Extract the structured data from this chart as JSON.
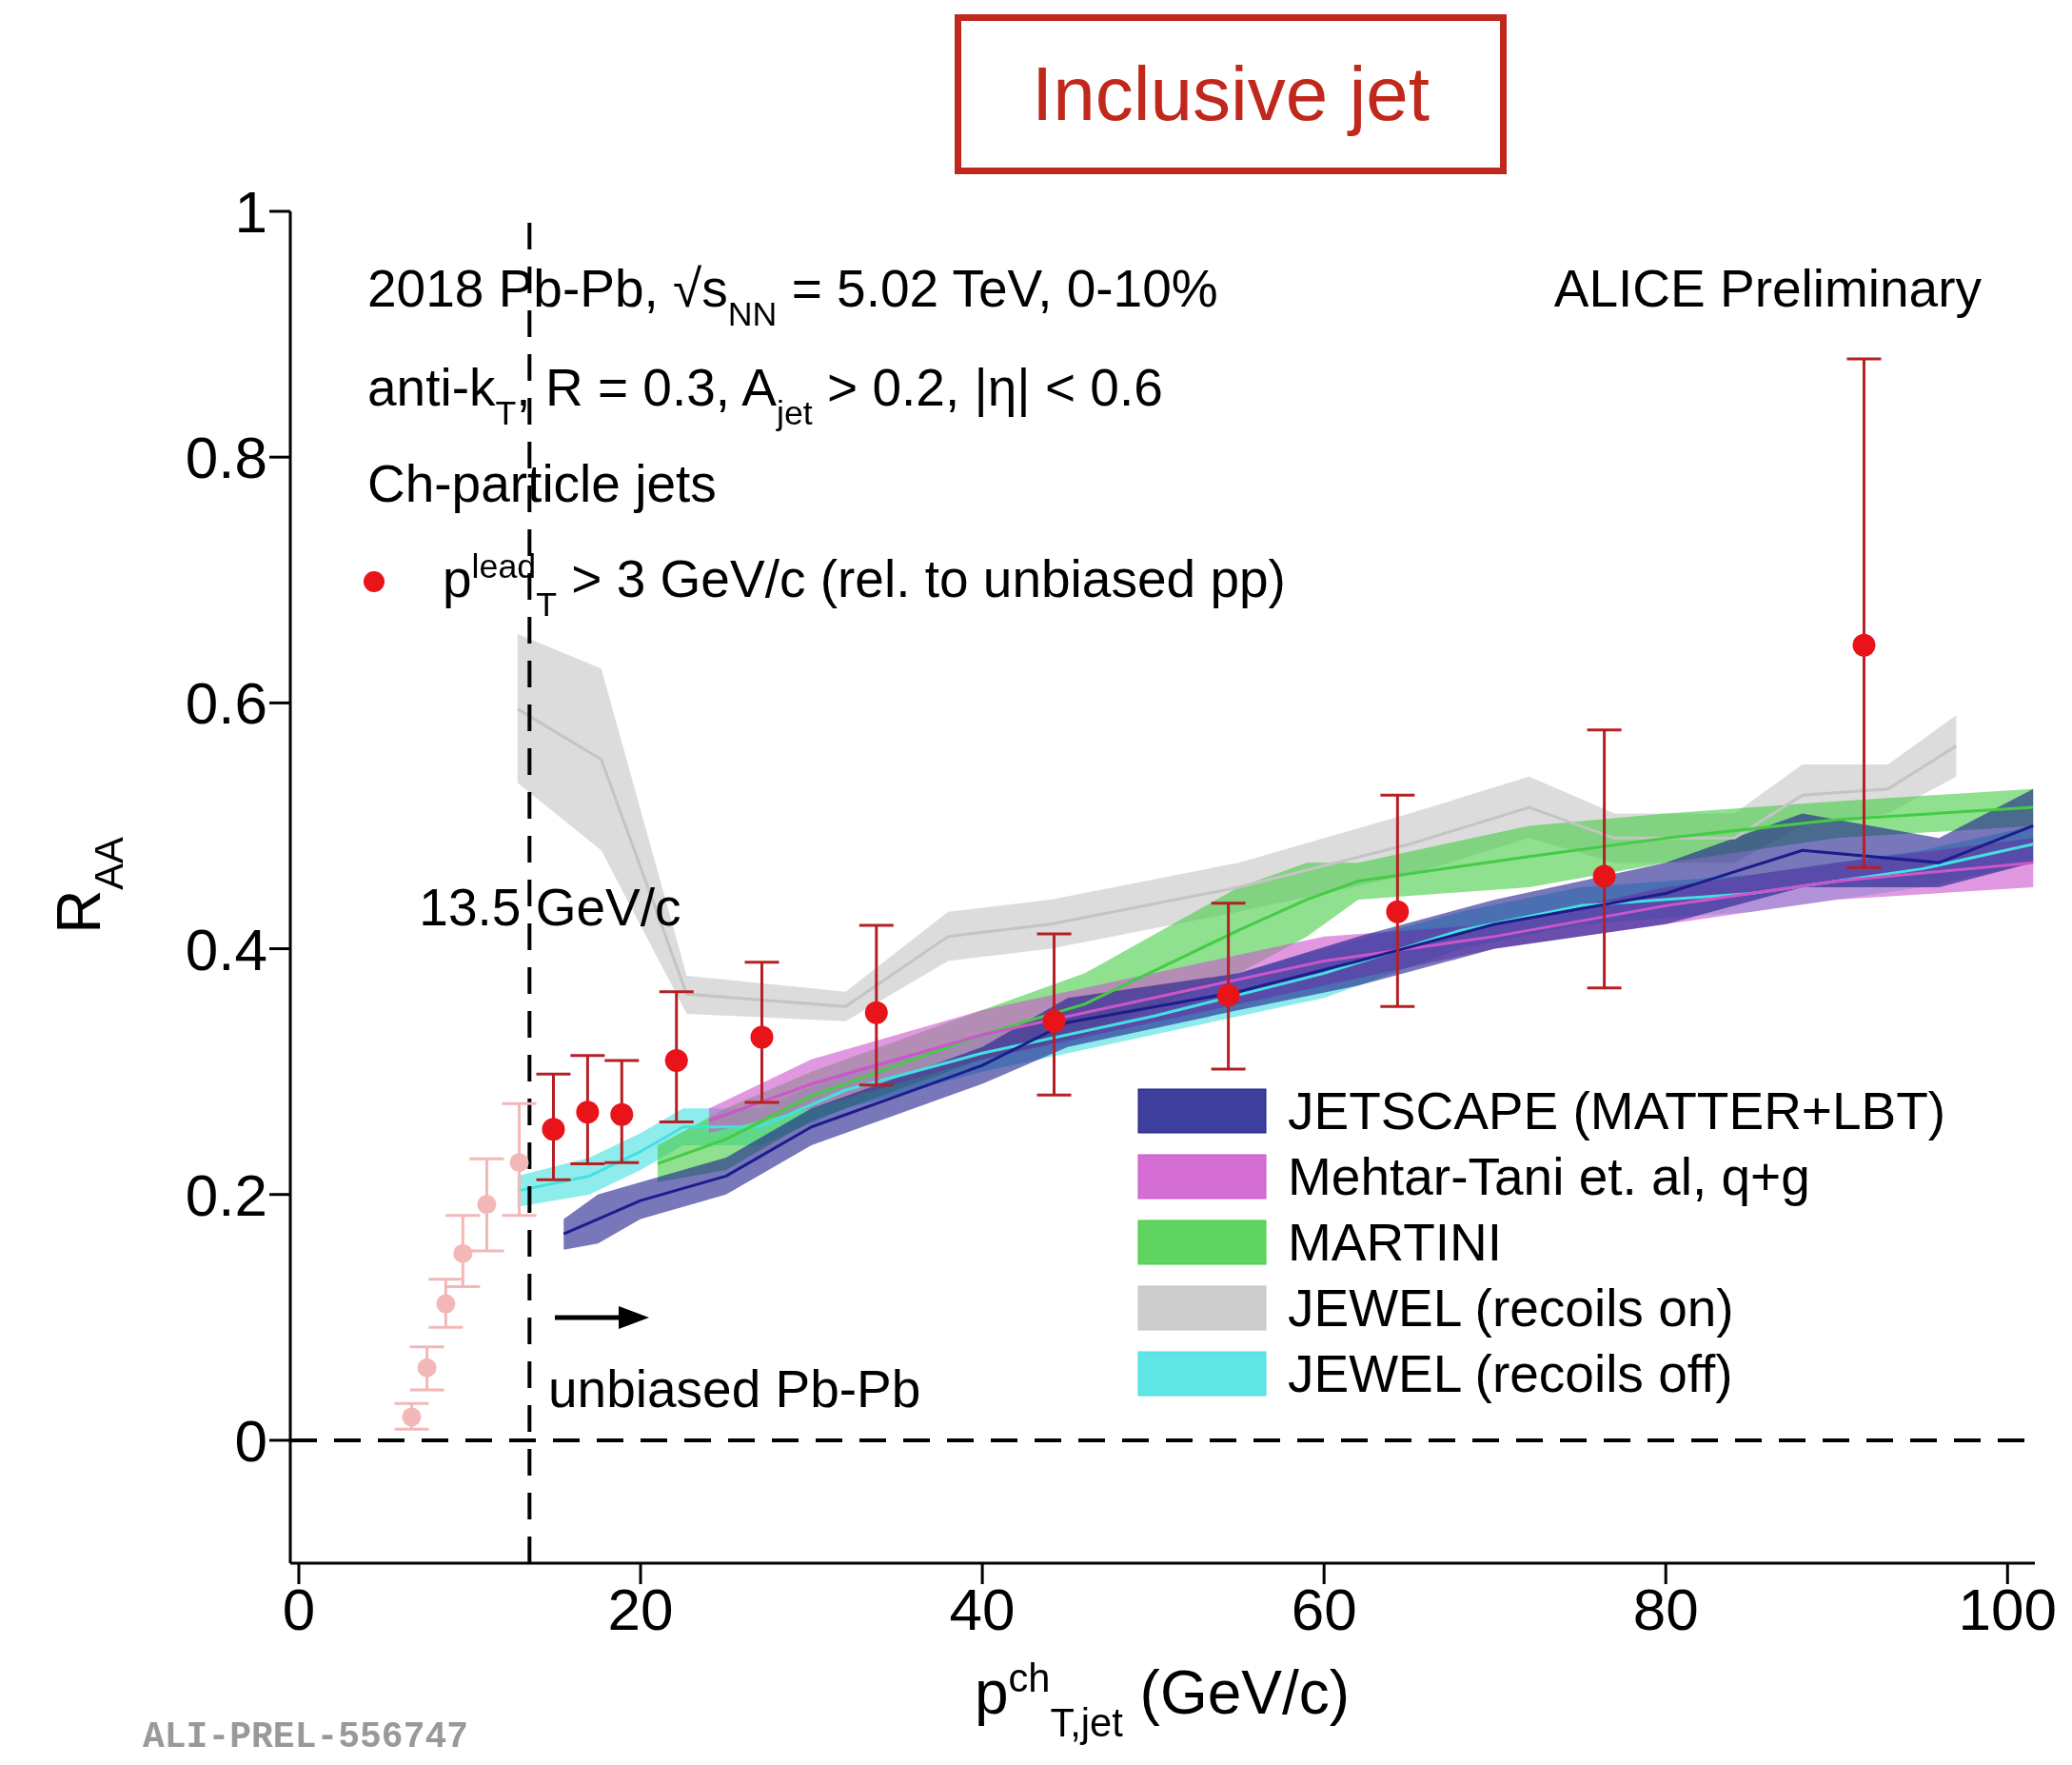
{
  "chart_data": {
    "type": "scatter",
    "title": "Inclusive jet",
    "xlabel": "p$^{ch}$$_{T,jet}$ (GeV/c)",
    "ylabel": "R$_{AA}$",
    "xlim": [
      -0.5,
      101.6
    ],
    "xticks": [
      0,
      20,
      40,
      60,
      80,
      100
    ],
    "ylim": [
      -0.1,
      1
    ],
    "yticks": [
      0,
      0.2,
      0.4,
      0.6,
      0.8,
      1
    ],
    "grid": false,
    "legend": "bottom right",
    "marker": "circle",
    "annotations": [
      "2018 Pb-Pb, √s$_{NN}$ = 5.02 TeV, 0-10%",
      "anti-k$_{T}$, R = 0.3, A$_{jet}$ > 0.2, |η| < 0.6",
      "Ch-particle jets",
      "ALICE Preliminary",
      "unbiased Pb-Pb",
      "ALI-PREL-556747"
    ],
    "ref_lines": [
      {
        "axis": "x",
        "value": 13.5,
        "label": "13.5 GeV/c",
        "color": "#000000",
        "line_style": "dashed"
      },
      {
        "axis": "y",
        "value": 0,
        "label": null,
        "color": "#000000",
        "line_style": "dashed"
      }
    ],
    "series": [
      {
        "type": "line",
        "marker": "none",
        "name": "JETSCAPE (MATTER+LBT)",
        "color": "#1c1c8c",
        "x": [
          15.5,
          17.5,
          20,
          25,
          30,
          40,
          45,
          55,
          62,
          70,
          80,
          88,
          96,
          101.5
        ],
        "values": [
          0.168,
          0.18,
          0.195,
          0.215,
          0.255,
          0.305,
          0.34,
          0.365,
          0.39,
          0.42,
          0.445,
          0.48,
          0.47,
          0.5
        ],
        "lower": [
          0.155,
          0.16,
          0.18,
          0.2,
          0.24,
          0.29,
          0.32,
          0.35,
          0.37,
          0.4,
          0.42,
          0.45,
          0.45,
          0.47
        ],
        "upper": [
          0.18,
          0.2,
          0.21,
          0.23,
          0.27,
          0.32,
          0.36,
          0.38,
          0.41,
          0.44,
          0.47,
          0.51,
          0.49,
          0.53
        ]
      },
      {
        "type": "line",
        "marker": "none",
        "name": "Mehtar-Tani et. al, q+g",
        "color": "#cc55cc",
        "x": [
          24,
          30,
          40,
          50,
          60,
          70,
          80,
          90,
          101.5
        ],
        "values": [
          0.26,
          0.29,
          0.33,
          0.36,
          0.39,
          0.41,
          0.435,
          0.455,
          0.47
        ],
        "lower": [
          0.25,
          0.27,
          0.31,
          0.34,
          0.37,
          0.4,
          0.42,
          0.44,
          0.45
        ],
        "upper": [
          0.27,
          0.31,
          0.35,
          0.38,
          0.41,
          0.42,
          0.45,
          0.47,
          0.49
        ]
      },
      {
        "type": "line",
        "marker": "none",
        "name": "MARTINI",
        "color": "#44cc44",
        "x": [
          21,
          25,
          30,
          40,
          46,
          55,
          59,
          62,
          72,
          80,
          90,
          101.5
        ],
        "values": [
          0.225,
          0.245,
          0.28,
          0.33,
          0.355,
          0.415,
          0.44,
          0.455,
          0.475,
          0.49,
          0.505,
          0.515
        ],
        "lower": [
          0.21,
          0.22,
          0.26,
          0.31,
          0.33,
          0.38,
          0.41,
          0.44,
          0.45,
          0.47,
          0.49,
          0.5
        ],
        "upper": [
          0.24,
          0.27,
          0.3,
          0.35,
          0.38,
          0.45,
          0.47,
          0.47,
          0.5,
          0.51,
          0.52,
          0.53
        ]
      },
      {
        "type": "line",
        "marker": "none",
        "name": "JEWEL (recoils on)",
        "color": "#c4c4c4",
        "x": [
          12.8,
          17.7,
          22.7,
          32,
          38,
          44,
          55,
          65,
          72,
          77,
          84,
          88,
          93,
          97
        ],
        "values": [
          0.595,
          0.554,
          0.363,
          0.353,
          0.41,
          0.42,
          0.45,
          0.485,
          0.515,
          0.49,
          0.49,
          0.525,
          0.53,
          0.565
        ],
        "lower": [
          0.535,
          0.48,
          0.347,
          0.341,
          0.39,
          0.4,
          0.43,
          0.46,
          0.49,
          0.47,
          0.47,
          0.5,
          0.51,
          0.54
        ],
        "upper": [
          0.656,
          0.628,
          0.378,
          0.365,
          0.43,
          0.44,
          0.47,
          0.51,
          0.54,
          0.51,
          0.51,
          0.55,
          0.55,
          0.59
        ]
      },
      {
        "type": "line",
        "marker": "none",
        "name": "JEWEL (recoils off)",
        "color": "#44e0e0",
        "x": [
          12.8,
          17,
          20,
          22.5,
          27,
          32,
          40,
          50,
          60,
          68,
          75,
          85,
          95,
          101.5
        ],
        "values": [
          0.203,
          0.215,
          0.235,
          0.255,
          0.255,
          0.285,
          0.315,
          0.345,
          0.38,
          0.415,
          0.435,
          0.445,
          0.465,
          0.485
        ],
        "lower": [
          0.19,
          0.2,
          0.22,
          0.24,
          0.24,
          0.27,
          0.3,
          0.33,
          0.36,
          0.4,
          0.42,
          0.43,
          0.45,
          0.47
        ],
        "upper": [
          0.215,
          0.23,
          0.25,
          0.27,
          0.27,
          0.3,
          0.33,
          0.36,
          0.4,
          0.43,
          0.45,
          0.46,
          0.48,
          0.5
        ]
      },
      {
        "color": "#f2b8b8",
        "x": [
          6.6,
          7.5,
          8.6,
          9.6,
          11.0,
          12.9
        ],
        "values": [
          0.019,
          0.059,
          0.111,
          0.152,
          0.192,
          0.226
        ],
        "errors": [
          [
            0.009,
            0.03
          ],
          [
            0.041,
            0.076
          ],
          [
            0.092,
            0.131
          ],
          [
            0.125,
            0.183
          ],
          [
            0.154,
            0.229
          ],
          [
            0.183,
            0.274
          ]
        ]
      },
      {
        "name": "p$^{lead}$$_{T}$ > 3 GeV/c  (rel. to unbiased pp)",
        "color": "#e8141a",
        "x": [
          14.9,
          16.9,
          18.9,
          22.1,
          27.1,
          33.8,
          44.2,
          54.4,
          64.3,
          76.4,
          91.6
        ],
        "values": [
          0.253,
          0.267,
          0.265,
          0.309,
          0.328,
          0.348,
          0.341,
          0.362,
          0.43,
          0.459,
          0.647
        ],
        "errors": [
          [
            0.212,
            0.298
          ],
          [
            0.225,
            0.313
          ],
          [
            0.226,
            0.309
          ],
          [
            0.259,
            0.365
          ],
          [
            0.275,
            0.389
          ],
          [
            0.289,
            0.419
          ],
          [
            0.281,
            0.412
          ],
          [
            0.302,
            0.437
          ],
          [
            0.353,
            0.525
          ],
          [
            0.368,
            0.578
          ],
          [
            0.466,
            0.88
          ]
        ]
      }
    ]
  }
}
